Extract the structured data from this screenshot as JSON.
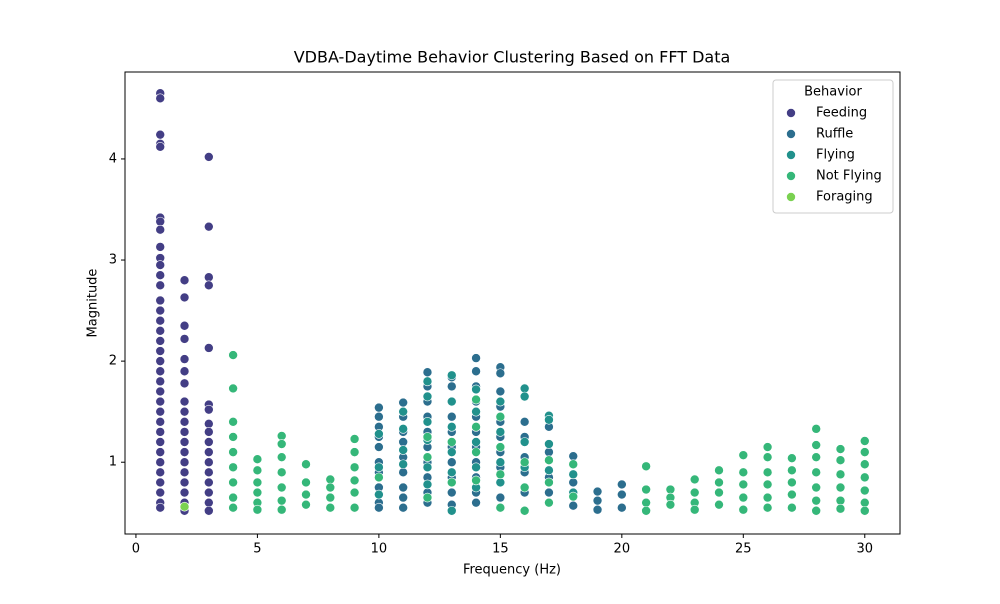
{
  "chart_data": {
    "type": "scatter",
    "title": "VDBA-Daytime Behavior Clustering Based on FFT Data",
    "x_label": "Frequency (Hz)",
    "y_label": "Magnitude",
    "legend_title": "Behavior",
    "legend": "upper right",
    "xlim": [
      -0.45,
      31.45
    ],
    "ylim": [
      0.29,
      4.86
    ],
    "xticks": [
      0,
      5,
      10,
      15,
      20,
      25,
      30
    ],
    "yticks": [
      1,
      2,
      3,
      4
    ],
    "series": [
      {
        "name": "Feeding",
        "color": "#433e85",
        "x": [
          1,
          1,
          1,
          1,
          1,
          1,
          1,
          1,
          1,
          1,
          1,
          1,
          1,
          1,
          1,
          1,
          1,
          1,
          1,
          1,
          1,
          1,
          1,
          1,
          1,
          1,
          1,
          1,
          1,
          1,
          1,
          1,
          1,
          1,
          1,
          2,
          2,
          2,
          2,
          2,
          2,
          2,
          2,
          2,
          2,
          2,
          2,
          2,
          2,
          2,
          2,
          2,
          2,
          2,
          3,
          3,
          3,
          3,
          3,
          3,
          3,
          3,
          3,
          3,
          3,
          3,
          3,
          3,
          3,
          3,
          3
        ],
        "values": [
          4.65,
          4.6,
          4.24,
          4.15,
          4.12,
          3.42,
          3.38,
          3.3,
          3.13,
          3.02,
          2.95,
          2.85,
          2.75,
          2.6,
          2.5,
          2.4,
          2.3,
          2.2,
          2.1,
          2.0,
          1.9,
          1.8,
          1.7,
          1.6,
          1.5,
          1.4,
          1.3,
          1.2,
          1.1,
          1.0,
          0.9,
          0.8,
          0.7,
          0.6,
          0.55,
          2.8,
          2.63,
          2.35,
          2.22,
          2.02,
          1.9,
          1.78,
          1.6,
          1.5,
          1.4,
          1.3,
          1.2,
          1.1,
          1.0,
          0.9,
          0.8,
          0.7,
          0.6,
          0.52,
          4.02,
          3.33,
          2.83,
          2.75,
          2.13,
          1.57,
          1.52,
          1.38,
          1.3,
          1.2,
          1.1,
          1.0,
          0.9,
          0.8,
          0.7,
          0.6,
          0.52
        ]
      },
      {
        "name": "Ruffle",
        "color": "#2c6e8e",
        "x": [
          10,
          10,
          10,
          10,
          10,
          10,
          10,
          10,
          10,
          10,
          11,
          11,
          11,
          11,
          11,
          11,
          11,
          11,
          11,
          12,
          12,
          12,
          12,
          12,
          12,
          12,
          12,
          12,
          12,
          13,
          13,
          13,
          13,
          13,
          13,
          13,
          13,
          13,
          13,
          14,
          14,
          14,
          14,
          14,
          14,
          14,
          14,
          14,
          14,
          14,
          15,
          15,
          15,
          15,
          15,
          15,
          15,
          15,
          15,
          15,
          16,
          16,
          16,
          16,
          16,
          17,
          17,
          17,
          17,
          18,
          18,
          18,
          18,
          19,
          19,
          19,
          20,
          20,
          20
        ],
        "values": [
          1.54,
          1.45,
          1.35,
          1.25,
          1.15,
          1.0,
          0.9,
          0.75,
          0.6,
          0.55,
          1.59,
          1.45,
          1.3,
          1.2,
          1.05,
          0.9,
          0.75,
          0.65,
          0.55,
          1.89,
          1.75,
          1.6,
          1.45,
          1.3,
          1.15,
          1.0,
          0.85,
          0.7,
          0.6,
          1.84,
          1.75,
          1.6,
          1.45,
          1.3,
          1.15,
          1.0,
          0.85,
          0.7,
          0.58,
          2.03,
          1.9,
          1.75,
          1.6,
          1.45,
          1.3,
          1.15,
          1.0,
          0.85,
          0.7,
          0.6,
          1.94,
          1.88,
          1.7,
          1.55,
          1.4,
          1.25,
          1.1,
          0.95,
          0.8,
          0.65,
          1.4,
          1.25,
          1.05,
          0.9,
          0.7,
          1.35,
          1.1,
          0.85,
          0.7,
          1.06,
          0.98,
          0.8,
          0.57,
          0.71,
          0.62,
          0.53,
          0.78,
          0.68,
          0.55
        ]
      },
      {
        "name": "Flying",
        "color": "#21918c",
        "x": [
          10,
          10,
          10,
          11,
          11,
          11,
          11,
          12,
          12,
          12,
          12,
          12,
          12,
          13,
          13,
          13,
          13,
          13,
          13,
          14,
          14,
          14,
          14,
          14,
          15,
          15,
          15,
          15,
          16,
          16,
          16,
          16,
          17,
          17,
          17,
          17,
          18,
          18
        ],
        "values": [
          1.28,
          0.95,
          0.68,
          1.5,
          1.33,
          1.12,
          0.98,
          1.8,
          1.65,
          1.4,
          1.22,
          0.95,
          0.78,
          1.86,
          1.6,
          1.35,
          1.1,
          0.9,
          0.52,
          1.72,
          1.5,
          1.2,
          0.95,
          0.75,
          1.6,
          1.3,
          1.0,
          0.8,
          1.73,
          1.65,
          1.2,
          0.95,
          1.46,
          1.42,
          1.18,
          0.92,
          0.88,
          0.7
        ]
      },
      {
        "name": "Not Flying",
        "color": "#35b779",
        "x": [
          4,
          4,
          4,
          4,
          4,
          4,
          4,
          4,
          4,
          5,
          5,
          5,
          5,
          5,
          5,
          6,
          6,
          6,
          6,
          6,
          6,
          6,
          7,
          7,
          7,
          7,
          8,
          8,
          8,
          8,
          9,
          9,
          9,
          9,
          9,
          9,
          10,
          12,
          12,
          12,
          13,
          13,
          14,
          14,
          14,
          14,
          15,
          15,
          15,
          15,
          16,
          16,
          16,
          17,
          17,
          17,
          18,
          18,
          21,
          21,
          21,
          21,
          22,
          22,
          22,
          23,
          23,
          23,
          23,
          24,
          24,
          24,
          24,
          25,
          25,
          25,
          25,
          25,
          26,
          26,
          26,
          26,
          26,
          26,
          27,
          27,
          27,
          27,
          27,
          28,
          28,
          28,
          28,
          28,
          28,
          28,
          29,
          29,
          29,
          29,
          29,
          29,
          30,
          30,
          30,
          30,
          30,
          30,
          30
        ],
        "values": [
          2.06,
          1.73,
          1.4,
          1.25,
          1.1,
          0.95,
          0.8,
          0.65,
          0.55,
          1.03,
          0.92,
          0.8,
          0.7,
          0.6,
          0.53,
          1.26,
          1.18,
          1.05,
          0.9,
          0.75,
          0.62,
          0.53,
          0.98,
          0.8,
          0.68,
          0.58,
          0.83,
          0.75,
          0.65,
          0.55,
          1.23,
          1.1,
          0.95,
          0.82,
          0.7,
          0.55,
          0.85,
          1.25,
          1.05,
          0.65,
          1.2,
          0.8,
          1.62,
          1.35,
          1.1,
          0.82,
          1.45,
          1.15,
          0.88,
          0.55,
          1.0,
          0.75,
          0.52,
          1.02,
          0.8,
          0.6,
          0.98,
          0.66,
          0.96,
          0.73,
          0.6,
          0.52,
          0.73,
          0.65,
          0.58,
          0.83,
          0.7,
          0.6,
          0.53,
          0.92,
          0.8,
          0.7,
          0.58,
          1.07,
          0.9,
          0.78,
          0.65,
          0.53,
          1.15,
          1.05,
          0.9,
          0.78,
          0.65,
          0.55,
          1.04,
          0.92,
          0.8,
          0.68,
          0.55,
          1.33,
          1.17,
          1.05,
          0.9,
          0.75,
          0.62,
          0.52,
          1.13,
          1.02,
          0.88,
          0.75,
          0.62,
          0.54,
          1.21,
          1.1,
          0.98,
          0.85,
          0.72,
          0.6,
          0.52
        ]
      },
      {
        "name": "Foraging",
        "color": "#7ad151",
        "x": [
          2
        ],
        "values": [
          0.56
        ]
      }
    ]
  }
}
